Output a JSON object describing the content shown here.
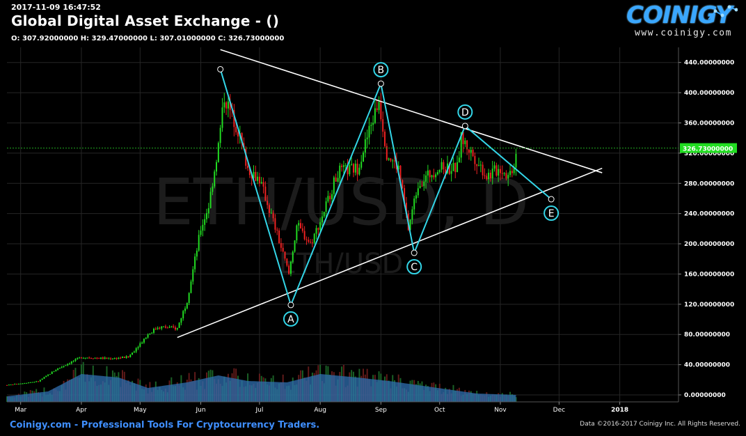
{
  "header": {
    "timestamp": "2017-11-09 16:47:52",
    "title": "Global Digital Asset Exchange -  ()",
    "ohlc": "O: 307.92000000 H: 329.47000000 L: 307.01000000 C: 326.73000000"
  },
  "brand": {
    "name": "COINIGY",
    "url": "www.coinigy.com"
  },
  "footer": {
    "left": "Coinigy.com - Professional Tools For Cryptocurrency Traders.",
    "right": "Data ©2016-2017 Coinigy Inc. All Rights Reserved."
  },
  "chart_data": {
    "type": "candlestick",
    "watermark_main": "ETH/USD, D",
    "watermark_sub": "ETH/USD",
    "y_ticks": [
      "0.00000000",
      "40.00000000",
      "80.00000000",
      "120.00000000",
      "160.00000000",
      "200.00000000",
      "240.00000000",
      "280.00000000",
      "320.00000000",
      "360.00000000",
      "400.00000000",
      "440.00000000"
    ],
    "y_range": [
      0,
      460
    ],
    "x_ticks": [
      "Mar",
      "Apr",
      "May",
      "Jun",
      "Jul",
      "Aug",
      "Sep",
      "Oct",
      "Nov",
      "Dec",
      "2018"
    ],
    "x_tick_dates": [
      "2017-03-01",
      "2017-04-01",
      "2017-05-01",
      "2017-06-01",
      "2017-07-01",
      "2017-08-01",
      "2017-09-01",
      "2017-10-01",
      "2017-11-01",
      "2017-12-01",
      "2018-01-01"
    ],
    "x_range": [
      "2017-02-22",
      "2018-01-31"
    ],
    "last_price_label": "326.73000000",
    "last_price": 326.73,
    "price_path": [
      [
        "2017-02-22",
        13
      ],
      [
        "2017-03-10",
        18
      ],
      [
        "2017-03-20",
        35
      ],
      [
        "2017-04-01",
        50
      ],
      [
        "2017-04-15",
        48
      ],
      [
        "2017-04-25",
        50
      ],
      [
        "2017-05-05",
        80
      ],
      [
        "2017-05-10",
        90
      ],
      [
        "2017-05-20",
        88
      ],
      [
        "2017-05-25",
        125
      ],
      [
        "2017-06-01",
        220
      ],
      [
        "2017-06-05",
        250
      ],
      [
        "2017-06-10",
        330
      ],
      [
        "2017-06-13",
        395
      ],
      [
        "2017-06-20",
        350
      ],
      [
        "2017-06-25",
        300
      ],
      [
        "2017-07-01",
        285
      ],
      [
        "2017-07-08",
        230
      ],
      [
        "2017-07-16",
        160
      ],
      [
        "2017-07-20",
        225
      ],
      [
        "2017-07-27",
        200
      ],
      [
        "2017-08-01",
        230
      ],
      [
        "2017-08-10",
        295
      ],
      [
        "2017-08-20",
        300
      ],
      [
        "2017-08-31",
        390
      ],
      [
        "2017-09-04",
        320
      ],
      [
        "2017-09-10",
        300
      ],
      [
        "2017-09-15",
        220
      ],
      [
        "2017-09-20",
        280
      ],
      [
        "2017-09-30",
        300
      ],
      [
        "2017-10-10",
        300
      ],
      [
        "2017-10-12",
        340
      ],
      [
        "2017-10-20",
        310
      ],
      [
        "2017-10-25",
        290
      ],
      [
        "2017-11-01",
        300
      ],
      [
        "2017-11-05",
        290
      ],
      [
        "2017-11-08",
        305
      ],
      [
        "2017-11-09",
        326
      ]
    ],
    "volume_profile": [
      [
        "2017-02-22",
        8
      ],
      [
        "2017-03-15",
        15
      ],
      [
        "2017-04-01",
        40
      ],
      [
        "2017-04-20",
        35
      ],
      [
        "2017-05-05",
        20
      ],
      [
        "2017-05-25",
        28
      ],
      [
        "2017-06-10",
        38
      ],
      [
        "2017-06-25",
        30
      ],
      [
        "2017-07-15",
        28
      ],
      [
        "2017-08-01",
        40
      ],
      [
        "2017-08-20",
        35
      ],
      [
        "2017-09-05",
        30
      ],
      [
        "2017-09-20",
        24
      ],
      [
        "2017-10-05",
        18
      ],
      [
        "2017-10-20",
        12
      ],
      [
        "2017-11-09",
        10
      ]
    ],
    "pattern_points": [
      {
        "label": "",
        "date": "2017-06-11",
        "price": 431
      },
      {
        "label": "A",
        "date": "2017-07-17",
        "price": 119
      },
      {
        "label": "B",
        "date": "2017-09-01",
        "price": 412
      },
      {
        "label": "C",
        "date": "2017-09-18",
        "price": 188
      },
      {
        "label": "D",
        "date": "2017-10-14",
        "price": 356
      },
      {
        "label": "E",
        "date": "2017-11-27",
        "price": 259
      }
    ],
    "trendlines": [
      {
        "name": "upper",
        "from": [
          "2017-06-11",
          457
        ],
        "to": [
          "2017-12-23",
          294
        ]
      },
      {
        "name": "lower",
        "from": [
          "2017-05-20",
          76
        ],
        "to": [
          "2017-12-23",
          300
        ]
      }
    ],
    "colors": {
      "up": "#22dd22",
      "down": "#ee2222",
      "volume_area": "#2f6fb0",
      "pattern": "#33d6e8",
      "trendline": "#ffffff",
      "grid": "#262626",
      "last_price_bg": "#22dd22"
    }
  }
}
